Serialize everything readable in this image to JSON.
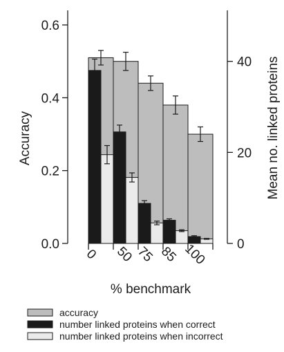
{
  "chart_data": {
    "type": "bar",
    "xlabel": "% benchmark",
    "ylabel_left": "Accuracy",
    "ylabel_right": "Mean no. linked proteins",
    "left_ylim": [
      0,
      0.64
    ],
    "right_ylim": [
      0,
      51.2
    ],
    "left_ticks": [
      "0.0",
      "0.2",
      "0.4",
      "0.6"
    ],
    "left_tick_values": [
      0,
      0.2,
      0.4,
      0.6
    ],
    "right_ticks": [
      "0",
      "20",
      "40"
    ],
    "right_tick_values": [
      0,
      20,
      40
    ],
    "categories": [
      "0",
      "50",
      "75",
      "85",
      "100"
    ],
    "grid": false,
    "legend_position": "bottom-left",
    "series": [
      {
        "name": "accuracy",
        "axis": "left",
        "color": "#bdbdbd",
        "values": [
          0.51,
          0.5,
          0.44,
          0.38,
          0.3
        ],
        "errors": [
          0.02,
          0.025,
          0.02,
          0.025,
          0.02
        ]
      },
      {
        "name": "number linked proteins when correct",
        "axis": "right",
        "color": "#1a1a1a",
        "values": [
          38,
          24.5,
          8.8,
          5.1,
          1.5
        ],
        "errors": [
          2.5,
          1.5,
          0.6,
          0.3,
          0.2
        ]
      },
      {
        "name": "number linked proteins when incorrect",
        "axis": "right",
        "color": "#ebebeb",
        "values": [
          19.5,
          14.5,
          4.5,
          2.8,
          1.0
        ],
        "errors": [
          2.0,
          1.0,
          0.4,
          0.2,
          0.1
        ]
      }
    ]
  }
}
